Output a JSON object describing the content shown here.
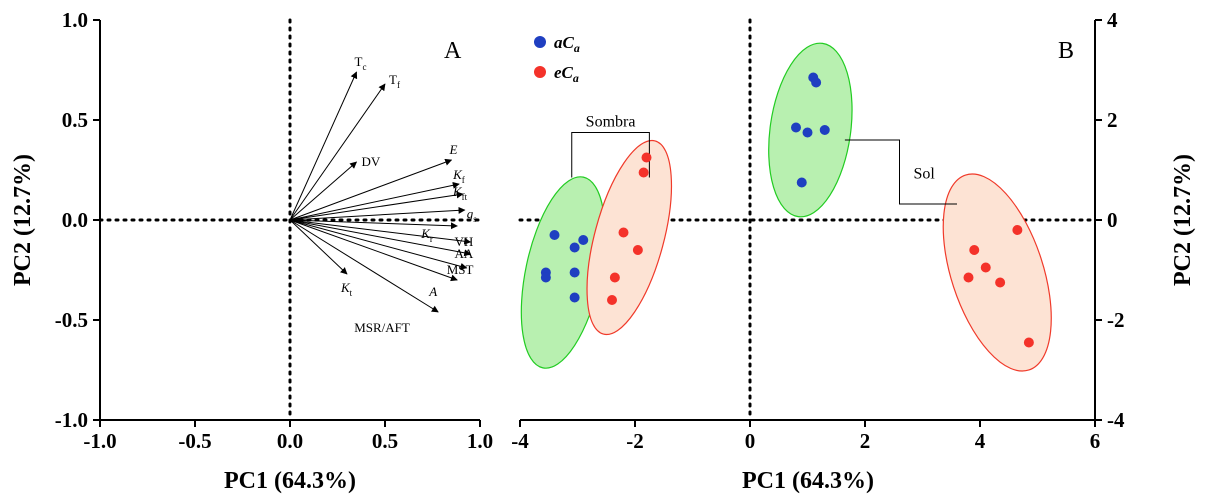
{
  "chart_data": [
    {
      "type": "biplot-loadings",
      "panel_label": "A",
      "xlabel": "PC1 (64.3%)",
      "ylabel": "PC2 (12.7%)",
      "xlim": [
        -1.0,
        1.0
      ],
      "ylim": [
        -1.0,
        1.0
      ],
      "xticks": [
        "-1.0",
        "-0.5",
        "0.0",
        "0.5",
        "1.0"
      ],
      "yticks": [
        "-1.0",
        "-0.5",
        "0.0",
        "0.5",
        "1.0"
      ],
      "zero_lines": "dotted",
      "vectors": [
        {
          "label": "Tc",
          "base": "T",
          "sub": "c",
          "italic": false,
          "x": 0.35,
          "y": 0.74
        },
        {
          "label": "Tf",
          "base": "T",
          "sub": "f",
          "italic": false,
          "x": 0.5,
          "y": 0.68
        },
        {
          "label": "DV",
          "base": "DV",
          "sub": "",
          "italic": false,
          "x": 0.35,
          "y": 0.29
        },
        {
          "label": "E",
          "base": "E",
          "sub": "",
          "italic": true,
          "x": 0.85,
          "y": 0.3
        },
        {
          "label": "Kf",
          "base": "K",
          "sub": "f",
          "italic": true,
          "x": 0.89,
          "y": 0.18
        },
        {
          "label": "Kft",
          "base": "K",
          "sub": "ft",
          "italic": true,
          "x": 0.91,
          "y": 0.13
        },
        {
          "label": "gs",
          "base": "g",
          "sub": "s",
          "italic": true,
          "x": 0.92,
          "y": 0.05
        },
        {
          "label": "Kr",
          "base": "K",
          "sub": "r",
          "italic": true,
          "x": 0.88,
          "y": -0.03
        },
        {
          "label": "VH",
          "base": "VH",
          "sub": "",
          "italic": false,
          "x": 0.95,
          "y": -0.11
        },
        {
          "label": "AA",
          "base": "AA",
          "sub": "",
          "italic": false,
          "x": 0.95,
          "y": -0.17
        },
        {
          "label": "MST",
          "base": "MST",
          "sub": "",
          "italic": false,
          "x": 0.93,
          "y": -0.24
        },
        {
          "label": "A",
          "base": "A",
          "sub": "",
          "italic": true,
          "x": 0.88,
          "y": -0.3
        },
        {
          "label": "Kt",
          "base": "K",
          "sub": "t",
          "italic": true,
          "x": 0.3,
          "y": -0.27
        },
        {
          "label": "MSR/AFT",
          "base": "MSR/AFT",
          "sub": "",
          "italic": false,
          "x": 0.78,
          "y": -0.46
        }
      ]
    },
    {
      "type": "scatter",
      "panel_label": "B",
      "xlabel": "PC1 (64.3%)",
      "ylabel": "PC2 (12.7%)",
      "xlim": [
        -4,
        6
      ],
      "ylim": [
        -4,
        4
      ],
      "xticks": [
        "-4",
        "-2",
        "0",
        "2",
        "4",
        "6"
      ],
      "yticks": [
        "-4",
        "-2",
        "0",
        "2",
        "4"
      ],
      "y_axis_side": "right",
      "zero_lines": "dotted",
      "legend": [
        {
          "base": "aC",
          "sub": "a",
          "color": "#1f3fc1"
        },
        {
          "base": "eC",
          "sub": "a",
          "color": "#f4322a"
        }
      ],
      "legend_position": "top-left",
      "series": [
        {
          "name": "aCa",
          "color": "#1f3fc1",
          "points": [
            [
              -3.4,
              -0.3
            ],
            [
              -3.05,
              -0.55
            ],
            [
              -2.9,
              -0.4
            ],
            [
              -3.55,
              -1.05
            ],
            [
              -3.55,
              -1.15
            ],
            [
              -3.05,
              -1.05
            ],
            [
              -3.05,
              -1.55
            ],
            [
              1.1,
              2.85
            ],
            [
              1.15,
              2.75
            ],
            [
              0.8,
              1.85
            ],
            [
              1.0,
              1.75
            ],
            [
              1.3,
              1.8
            ],
            [
              0.9,
              0.75
            ]
          ]
        },
        {
          "name": "eCa",
          "color": "#f4322a",
          "points": [
            [
              -1.8,
              1.25
            ],
            [
              -1.85,
              0.95
            ],
            [
              -2.2,
              -0.25
            ],
            [
              -1.95,
              -0.6
            ],
            [
              -2.35,
              -1.15
            ],
            [
              -2.4,
              -1.6
            ],
            [
              4.65,
              -0.2
            ],
            [
              3.9,
              -0.6
            ],
            [
              4.1,
              -0.95
            ],
            [
              3.8,
              -1.15
            ],
            [
              4.35,
              -1.25
            ],
            [
              4.85,
              -2.45
            ]
          ]
        }
      ],
      "groups": [
        {
          "label": "Sombra"
        },
        {
          "label": "Sol"
        }
      ]
    }
  ]
}
